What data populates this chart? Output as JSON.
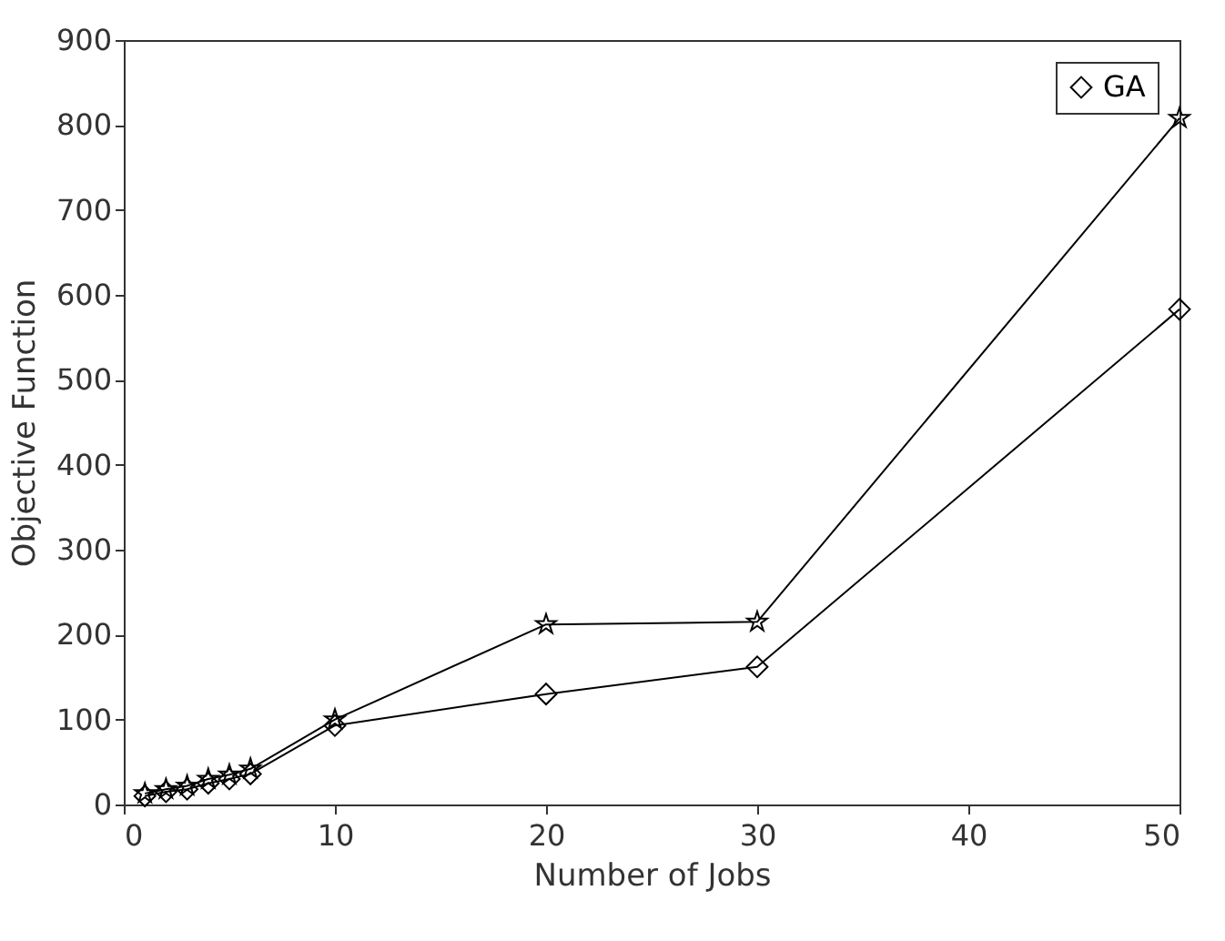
{
  "chart_data": {
    "type": "line",
    "xlabel": "Number of Jobs",
    "ylabel": "Objective Function",
    "xlim": [
      0,
      50
    ],
    "xticks": [
      0,
      10,
      20,
      30,
      40,
      50
    ],
    "ylim": [
      0,
      900
    ],
    "yticks": [
      0,
      100,
      200,
      300,
      400,
      500,
      600,
      700,
      800,
      900
    ],
    "grid": false,
    "legend": "top right",
    "line_style": "solid",
    "series": [
      {
        "name": "GA",
        "color": "#000000",
        "marker": "diamond",
        "x": [
          1,
          2,
          3,
          4,
          5,
          6,
          10,
          20,
          30,
          50
        ],
        "values": [
          10,
          15,
          18,
          25,
          30,
          36,
          93,
          130,
          162,
          583
        ]
      },
      {
        "color": "#000000",
        "marker": "star",
        "x": [
          1,
          2,
          3,
          4,
          5,
          6,
          10,
          20,
          30,
          50
        ],
        "values": [
          13,
          18,
          22,
          30,
          35,
          42,
          100,
          212,
          215,
          808
        ]
      }
    ]
  }
}
